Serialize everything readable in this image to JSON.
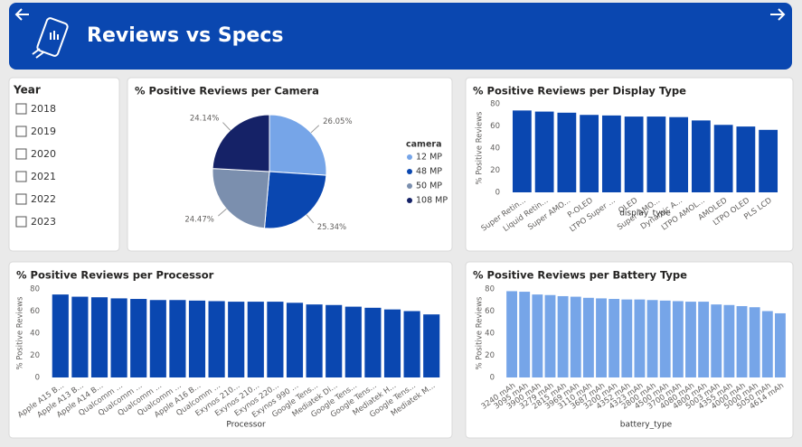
{
  "header": {
    "title": "Reviews vs Specs"
  },
  "slicer": {
    "title": "Year",
    "items": [
      "2018",
      "2019",
      "2020",
      "2021",
      "2022",
      "2023"
    ]
  },
  "chart_data": [
    {
      "type": "pie",
      "title": "% Positive Reviews per Camera",
      "legend_title": "camera",
      "categories": [
        "12 MP",
        "48 MP",
        "50 MP",
        "108 MP"
      ],
      "values": [
        26.05,
        25.34,
        24.47,
        24.14
      ],
      "value_labels": [
        "26.05%",
        "25.34%",
        "24.47%",
        "24.14%"
      ],
      "colors": [
        "#76a5e8",
        "#0a47b0",
        "#7b8fae",
        "#152267"
      ],
      "legend": "right"
    },
    {
      "type": "bar",
      "title": "% Positive Reviews per Display Type",
      "y_label": "% Positive Reviews",
      "x_label": "display_type",
      "categories": [
        "Super Retin...",
        "Liquid Retin...",
        "Super AMO...",
        "P-OLED",
        "LTPO Super ...",
        "OLED",
        "Super AMO...",
        "Dynamic A...",
        "LTPO AMOL...",
        "AMOLED",
        "LTPO OLED",
        "PLS LCD"
      ],
      "values": [
        74,
        73,
        72,
        70,
        69.5,
        68.5,
        68.5,
        68,
        65,
        61,
        59.5,
        56.5
      ],
      "color": "#0a47b0",
      "ylim": [
        0,
        80
      ],
      "yticks": [
        0,
        20,
        40,
        60,
        80
      ]
    },
    {
      "type": "bar",
      "title": "% Positive Reviews per Processor",
      "y_label": "% Positive Reviews",
      "x_label": "Processor",
      "categories": [
        "Apple A15 B...",
        "Apple A13 B...",
        "Apple A14 B...",
        "Qualcomm ...",
        "Qualcomm ...",
        "Qualcomm ...",
        "Qualcomm ...",
        "Apple A16 B...",
        "Qualcomm ...",
        "Exynos 210...",
        "Exynos 210...",
        "Exynos 220...",
        "Exynos 990 ...",
        "Google Tens...",
        "Mediatek Di...",
        "Google Tens...",
        "Google Tens...",
        "Mediatek H...",
        "Google Tens...",
        "Mediatek M..."
      ],
      "values": [
        75,
        73,
        72.5,
        71.5,
        71,
        70,
        70,
        69.5,
        69,
        68.5,
        68.5,
        68.5,
        67.5,
        66,
        65.5,
        64,
        63,
        61.5,
        60,
        57
      ],
      "color": "#0a47b0",
      "ylim": [
        0,
        80
      ],
      "yticks": [
        0,
        20,
        40,
        60,
        80
      ]
    },
    {
      "type": "bar",
      "title": "% Positive Reviews per Battery Type",
      "y_label": "% Positive Reviews",
      "x_label": "battery_type",
      "categories": [
        "3240 mAh",
        "3095 mAh",
        "3900 mAh",
        "3279 mAh",
        "2815 mAh",
        "3969 mAh",
        "3110 mAh",
        "3687 mAh",
        "3200 mAh",
        "4352 mAh",
        "4323 mAh",
        "2800 mAh",
        "4500 mAh",
        "3700 mAh",
        "4080 mAh",
        "4800 mAh",
        "5003 mAh",
        "4355 mAh",
        "4000 mAh",
        "5000 mAh",
        "5050 mAh",
        "4614 mAh"
      ],
      "values": [
        78,
        77.5,
        75,
        74.5,
        73.5,
        73,
        72,
        71.5,
        71,
        70.5,
        70.5,
        70,
        69.5,
        69,
        68.5,
        68.5,
        66,
        65.5,
        64.5,
        63.5,
        60,
        58
      ],
      "color": "#76a5e8",
      "ylim": [
        0,
        80
      ],
      "yticks": [
        0,
        20,
        40,
        60,
        80
      ]
    }
  ]
}
